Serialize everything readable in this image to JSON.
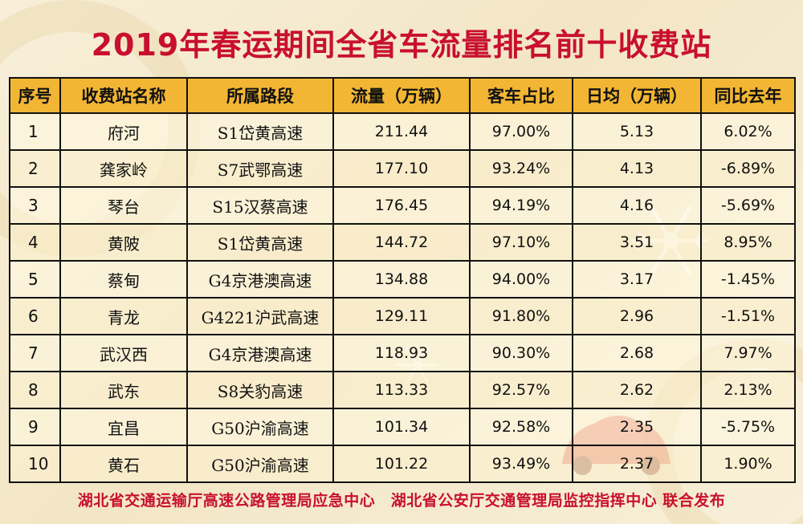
{
  "title": "2019年春运期间全省车流量排名前十收费站",
  "columns": [
    "序号",
    "收费站名称",
    "所属路段",
    "流量（万辆）",
    "客车占比",
    "日均（万辆）",
    "同比去年"
  ],
  "rows": [
    {
      "idx": "1",
      "name": "府河",
      "road": "S1岱黄高速",
      "flow": "211.44",
      "ratio": "97.00%",
      "daily": "5.13",
      "yoy": "6.02%"
    },
    {
      "idx": "2",
      "name": "龚家岭",
      "road": "S7武鄂高速",
      "flow": "177.10",
      "ratio": "93.24%",
      "daily": "4.13",
      "yoy": "-6.89%"
    },
    {
      "idx": "3",
      "name": "琴台",
      "road": "S15汉蔡高速",
      "flow": "176.45",
      "ratio": "94.19%",
      "daily": "4.16",
      "yoy": "-5.69%"
    },
    {
      "idx": "4",
      "name": "黄陂",
      "road": "S1岱黄高速",
      "flow": "144.72",
      "ratio": "97.10%",
      "daily": "3.51",
      "yoy": "8.95%"
    },
    {
      "idx": "5",
      "name": "蔡甸",
      "road": "G4京港澳高速",
      "flow": "134.88",
      "ratio": "94.00%",
      "daily": "3.17",
      "yoy": "-1.45%"
    },
    {
      "idx": "6",
      "name": "青龙",
      "road": "G4221沪武高速",
      "flow": "129.11",
      "ratio": "91.80%",
      "daily": "2.96",
      "yoy": "-1.51%"
    },
    {
      "idx": "7",
      "name": "武汉西",
      "road": "G4京港澳高速",
      "flow": "118.93",
      "ratio": "90.30%",
      "daily": "2.68",
      "yoy": "7.97%"
    },
    {
      "idx": "8",
      "name": "武东",
      "road": "S8关豹高速",
      "flow": "113.33",
      "ratio": "92.57%",
      "daily": "2.62",
      "yoy": "2.13%"
    },
    {
      "idx": "9",
      "name": "宜昌",
      "road": "G50沪渝高速",
      "flow": "101.34",
      "ratio": "92.58%",
      "daily": "2.35",
      "yoy": "-5.75%"
    },
    {
      "idx": "10",
      "name": "黄石",
      "road": "G50沪渝高速",
      "flow": "101.22",
      "ratio": "93.49%",
      "daily": "2.37",
      "yoy": "1.90%"
    }
  ],
  "footer": "湖北省交通运输厅高速公路管理局应急中心　湖北省公安厅交通管理局监控指挥中心 联合发布",
  "colors": {
    "title": "#c8102e",
    "header_bg": "#f2b634",
    "background": "#f6ecd4"
  },
  "icons": [
    "snowflake-icon",
    "car-icon"
  ]
}
